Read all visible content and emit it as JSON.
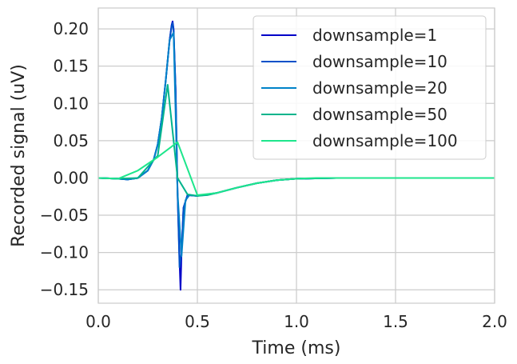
{
  "chart_data": {
    "type": "line",
    "xlabel": "Time (ms)",
    "ylabel": "Recorded signal (uV)",
    "xlim": [
      0.0,
      2.0
    ],
    "ylim": [
      -0.168,
      0.228
    ],
    "x_ticks": [
      0.0,
      0.5,
      1.0,
      1.5,
      2.0
    ],
    "x_tick_labels": [
      "0.0",
      "0.5",
      "1.0",
      "1.5",
      "2.0"
    ],
    "y_ticks": [
      0.2,
      0.15,
      0.1,
      0.05,
      0.0,
      -0.05,
      -0.1,
      -0.15
    ],
    "y_tick_labels": [
      "0.20",
      "0.15",
      "0.10",
      "0.05",
      "0.00",
      "−0.05",
      "−0.10",
      "−0.15"
    ],
    "grid": true,
    "legend_position": "top-right",
    "series": [
      {
        "name": "downsample=1",
        "color": "#0000c8",
        "x": [
          0.0,
          0.1,
          0.15,
          0.2,
          0.25,
          0.28,
          0.3,
          0.32,
          0.34,
          0.36,
          0.37,
          0.375,
          0.38,
          0.39,
          0.4,
          0.41,
          0.415,
          0.42,
          0.43,
          0.45,
          0.5,
          0.6,
          0.7,
          0.8,
          0.9,
          1.0,
          1.2,
          1.5,
          2.0
        ],
        "y": [
          0.0,
          -0.001,
          -0.002,
          0.0,
          0.01,
          0.025,
          0.045,
          0.08,
          0.13,
          0.185,
          0.205,
          0.21,
          0.2,
          0.12,
          -0.02,
          -0.11,
          -0.15,
          -0.1,
          -0.04,
          -0.023,
          -0.024,
          -0.02,
          -0.013,
          -0.007,
          -0.003,
          -0.001,
          0.0,
          0.0,
          0.0
        ]
      },
      {
        "name": "downsample=10",
        "color": "#0050c8",
        "x": [
          0.0,
          0.1,
          0.15,
          0.2,
          0.25,
          0.28,
          0.3,
          0.32,
          0.34,
          0.36,
          0.37,
          0.375,
          0.38,
          0.39,
          0.4,
          0.41,
          0.42,
          0.43,
          0.45,
          0.5,
          0.6,
          0.7,
          0.8,
          0.9,
          1.0,
          1.2,
          1.5,
          2.0
        ],
        "y": [
          0.0,
          -0.001,
          -0.002,
          0.0,
          0.01,
          0.025,
          0.045,
          0.08,
          0.13,
          0.185,
          0.203,
          0.208,
          0.198,
          0.12,
          -0.02,
          -0.12,
          -0.1,
          -0.04,
          -0.023,
          -0.024,
          -0.02,
          -0.013,
          -0.007,
          -0.003,
          -0.001,
          0.0,
          0.0,
          0.0
        ]
      },
      {
        "name": "downsample=20",
        "color": "#0082c8",
        "x": [
          0.0,
          0.1,
          0.15,
          0.2,
          0.25,
          0.28,
          0.3,
          0.32,
          0.34,
          0.36,
          0.38,
          0.4,
          0.42,
          0.44,
          0.46,
          0.5,
          0.6,
          0.7,
          0.8,
          0.9,
          1.0,
          1.2,
          1.5,
          2.0
        ],
        "y": [
          0.0,
          -0.001,
          -0.002,
          0.0,
          0.01,
          0.025,
          0.045,
          0.08,
          0.13,
          0.185,
          0.195,
          -0.02,
          -0.105,
          -0.03,
          -0.023,
          -0.024,
          -0.02,
          -0.013,
          -0.007,
          -0.003,
          -0.001,
          0.0,
          0.0,
          0.0
        ]
      },
      {
        "name": "downsample=50",
        "color": "#00b48c",
        "x": [
          0.0,
          0.1,
          0.2,
          0.3,
          0.35,
          0.4,
          0.45,
          0.5,
          0.55,
          0.6,
          0.7,
          0.8,
          0.9,
          1.0,
          1.2,
          1.5,
          2.0
        ],
        "y": [
          0.0,
          -0.001,
          0.0,
          0.03,
          0.125,
          0.0,
          -0.022,
          -0.024,
          -0.023,
          -0.02,
          -0.013,
          -0.007,
          -0.003,
          -0.001,
          0.0,
          0.0,
          0.0
        ]
      },
      {
        "name": "downsample=100",
        "color": "#1ee68c",
        "x": [
          0.0,
          0.1,
          0.2,
          0.3,
          0.4,
          0.5,
          0.6,
          0.7,
          0.8,
          0.9,
          1.0,
          1.1,
          1.2,
          1.5,
          2.0
        ],
        "y": [
          0.0,
          -0.001,
          0.01,
          0.028,
          0.048,
          -0.023,
          -0.02,
          -0.013,
          -0.007,
          -0.003,
          -0.001,
          0.0,
          0.0,
          0.0,
          0.0
        ]
      }
    ]
  }
}
